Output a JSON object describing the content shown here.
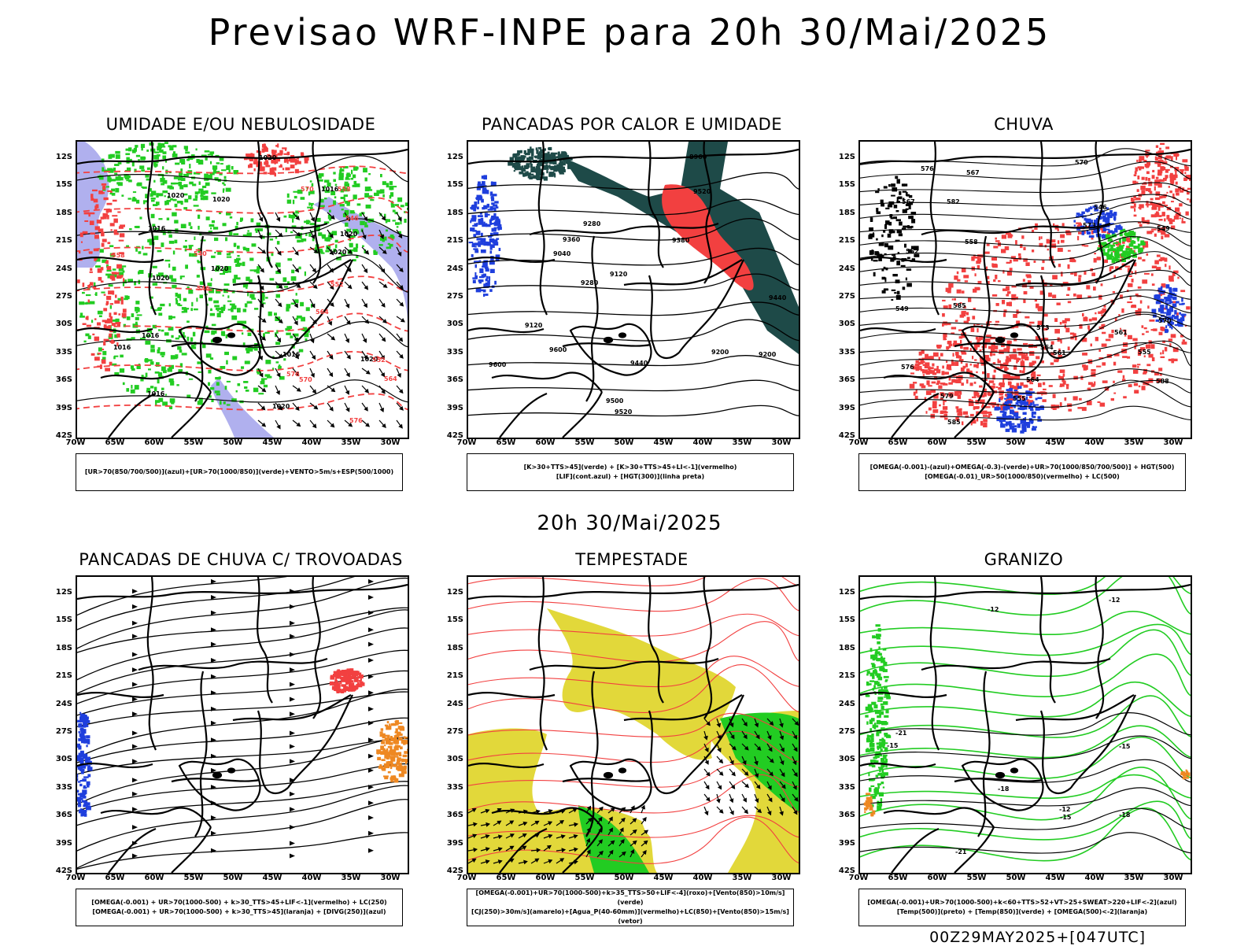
{
  "main_title": "Previsao WRF-INPE  para 20h 30/Mai/2025",
  "mid_title": "20h 30/Mai/2025",
  "footer": "00Z29MAY2025+[047UTC]",
  "lat_labels": [
    "12S",
    "15S",
    "18S",
    "21S",
    "24S",
    "27S",
    "30S",
    "33S",
    "36S",
    "39S",
    "42S"
  ],
  "lon_labels": [
    "70W",
    "65W",
    "60W",
    "55W",
    "50W",
    "45W",
    "40W",
    "35W",
    "30W"
  ],
  "colors": {
    "red": "#f24040",
    "green": "#22cc22",
    "blue": "#1f3fdd",
    "lavender": "#b0b0ee",
    "darkteal": "#1e4a48",
    "yellow": "#e2d83a",
    "orange": "#ee8822"
  },
  "panels": [
    {
      "title": "UMIDADE E/OU NEBULOSIDADE",
      "legend": [
        "[UR>70(850/700/500)](azul)+[UR>70(1000/850)](verde)+VENTO>5m/s+ESP(500/1000)"
      ],
      "contour_labels": [
        "1016",
        "1016",
        "1016",
        "1016",
        "1020",
        "1020",
        "1020",
        "1020",
        "1020",
        "1016",
        "1020",
        "1020",
        "1020",
        "1016",
        "1020",
        "576",
        "570",
        "564",
        "558",
        "552",
        "546",
        "540",
        "546",
        "552",
        "558",
        "564",
        "570",
        "576"
      ]
    },
    {
      "title": "PANCADAS POR CALOR E UMIDADE",
      "legend": [
        "[K>30+TTS>45](verde)  +  [K>30+TTS>45+LI<-1](vermelho)",
        "[LIF](cont.azul)  +  [HGT(300)](linha preta)"
      ],
      "contour_labels": [
        "9600",
        "9520",
        "9600",
        "9520",
        "9500",
        "9440",
        "9440",
        "9360",
        "9380",
        "9280",
        "9280",
        "9200",
        "9120",
        "9200",
        "9040",
        "8960",
        "9120"
      ]
    },
    {
      "title": "CHUVA",
      "legend": [
        "[OMEGA(-0.001)-(azul)+OMEGA(-0.3)-(verde)+UR>70(1000/850/700/500)]  +  HGT(500)",
        "[OMEGA(-0.01)_UR>50(1000/850)(vermelho)  +  LC(500)"
      ],
      "contour_labels": [
        "585",
        "582",
        "588",
        "585",
        "579",
        "576",
        "573",
        "570",
        "567",
        "564",
        "561",
        "558",
        "555",
        "552",
        "549",
        "546",
        "576",
        "573",
        "570",
        "567",
        "564",
        "561",
        "555",
        "549"
      ]
    },
    {
      "title": "PANCADAS DE CHUVA C/ TROVOADAS",
      "legend": [
        "[OMEGA(-0.001)  +  UR>70(1000-500)  +  k>30_TTS>45+LIF<-1](vermelho)  +  LC(250)",
        "[OMEGA(-0.001)  +  UR>70(1000-500)  +  k>30_TTS>45](laranja)  +  [DIVG(250)](azul)"
      ],
      "contour_labels": []
    },
    {
      "title": "TEMPESTADE",
      "legend": [
        "[OMEGA(-0.001)+UR>70(1000-500)+k>35_TTS>50+LIF<-4](roxo)+[Vento(850)>10m/s](verde)",
        "[CJ(250)>30m/s](amarelo)+[Agua_P(40-60mm)](vermelho)+LC(850)+[Vento(850)>15m/s](vetor)"
      ],
      "contour_labels": []
    },
    {
      "title": "GRANIZO",
      "legend": [
        "[OMEGA(-0.001)+UR>70(1000-500)+k<60+TTS>52+VT>25+SWEAT>220+LIF<-2](azul)",
        "[Temp(500)](preto)  +  [Temp(850)](verde)  +  [OMEGA(500)<-2](laranja)"
      ],
      "contour_labels": [
        "-12",
        "-12",
        "-12",
        "-15",
        "-15",
        "-18",
        "-21",
        "-21",
        "-18",
        "-15"
      ]
    }
  ]
}
